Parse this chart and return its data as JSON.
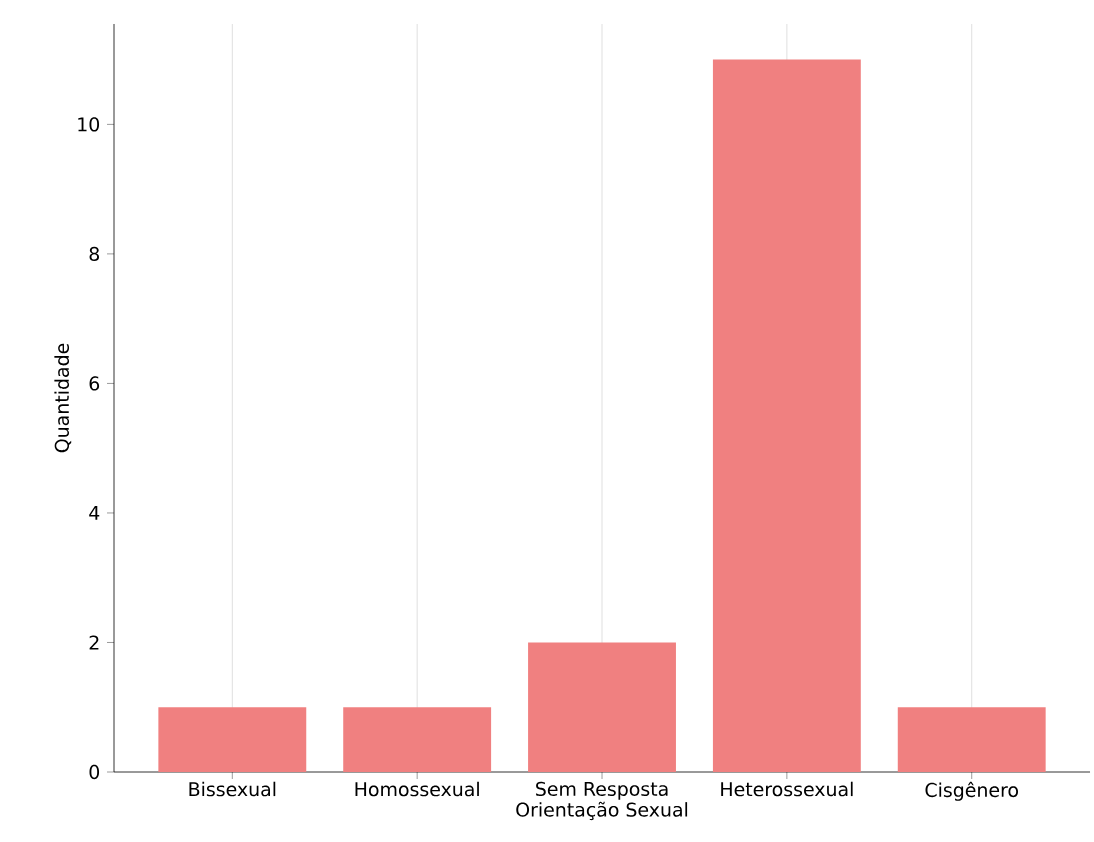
{
  "chart_data": {
    "type": "bar",
    "xlabel": "Orientação Sexual",
    "ylabel": "Quantidade",
    "categories": [
      "Bissexual",
      "Homossexual",
      "Sem Resposta",
      "Heterossexual",
      "Cisgênero"
    ],
    "values": [
      1,
      1,
      2,
      11,
      1
    ],
    "color": "#f08080",
    "ylim": [
      0,
      11.55
    ],
    "yticks": [
      0,
      2,
      4,
      6,
      8,
      10
    ],
    "grid": "x"
  }
}
